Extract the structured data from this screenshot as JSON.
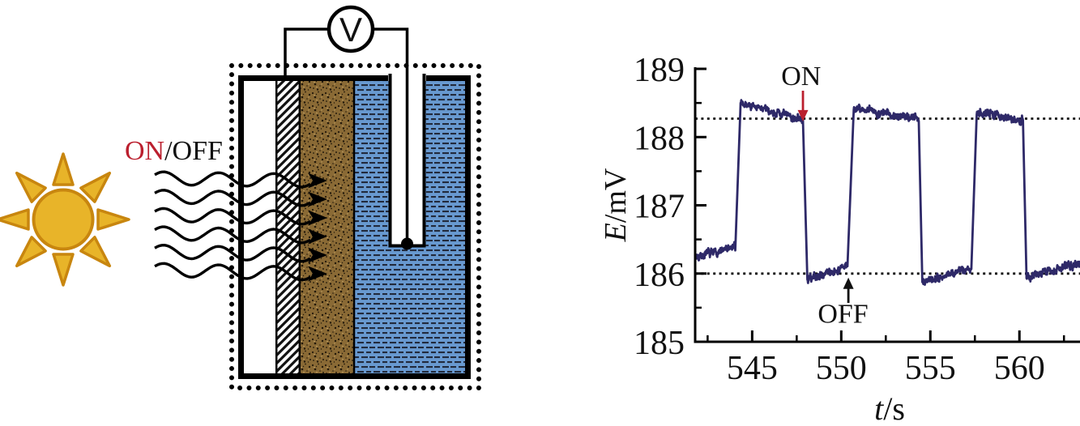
{
  "figure": {
    "left_panel": "photoelectrochemical cell schematic under chopped illumination",
    "right_panel": "photovoltage transient response chart"
  },
  "diagram": {
    "light_switch_label": {
      "on": "ON",
      "slash_off": "/OFF"
    },
    "voltmeter_label": "V",
    "light_wave_count": 6,
    "absorption_arrow_count": 6,
    "colors": {
      "sun_fill": "#e8b429",
      "sun_stroke": "#c8860f",
      "on_red": "#bb1f2e",
      "electrolyte_blue": "#6899d0",
      "electrolyte_dash": "#222a3c",
      "film_brown": "#8a6a35",
      "film_speck": "#241a0b",
      "wire_black": "#000000"
    }
  },
  "chart": {
    "ylabel_italic": "E",
    "ylabel_rest": "/mV",
    "xlabel_italic": "t",
    "xlabel_rest": "/s"
  },
  "chart_data": {
    "type": "line",
    "title": "",
    "xlabel": "t/s",
    "ylabel": "E/mV",
    "xlim": [
      541.8,
      563.4
    ],
    "ylim": [
      185,
      189
    ],
    "x_ticks": [
      545,
      550,
      555,
      560
    ],
    "y_ticks": [
      185,
      186,
      187,
      188,
      189
    ],
    "x_minor_ticks": [
      542.5,
      547.5,
      552.5,
      557.5,
      562.5
    ],
    "y_minor_ticks": [
      185.5,
      186.5,
      187.5,
      188.5
    ],
    "grid": false,
    "legend": "none",
    "reference_lines_mV": [
      186.0,
      188.27
    ],
    "light_on_level_mV": 188.3,
    "light_off_level_mV": 186.0,
    "series": [
      {
        "name": "photovoltage",
        "color": "#2e2968",
        "noise_mV": 0.05,
        "segments": [
          [
            541.8,
            544.05,
            186.25,
            186.38
          ],
          [
            544.35,
            547.85,
            188.5,
            188.25
          ],
          [
            548.1,
            550.35,
            185.92,
            186.1
          ],
          [
            550.7,
            554.35,
            188.42,
            188.27
          ],
          [
            554.55,
            557.3,
            185.88,
            186.08
          ],
          [
            557.6,
            560.2,
            188.38,
            188.25
          ],
          [
            560.4,
            563.4,
            185.95,
            186.15
          ]
        ]
      }
    ],
    "annotations": [
      {
        "label": "ON",
        "color": "#bb1f2e",
        "text_t": 547.75,
        "text_E": 188.76,
        "arrow_t": 547.85,
        "arrow_tail_E": 188.68,
        "arrow_tip_E": 188.23,
        "direction": "down"
      },
      {
        "label": "OFF",
        "color": "#111111",
        "text_t": 550.1,
        "text_E": 185.28,
        "arrow_t": 550.4,
        "arrow_tail_E": 185.57,
        "arrow_tip_E": 185.94,
        "direction": "up"
      }
    ]
  }
}
